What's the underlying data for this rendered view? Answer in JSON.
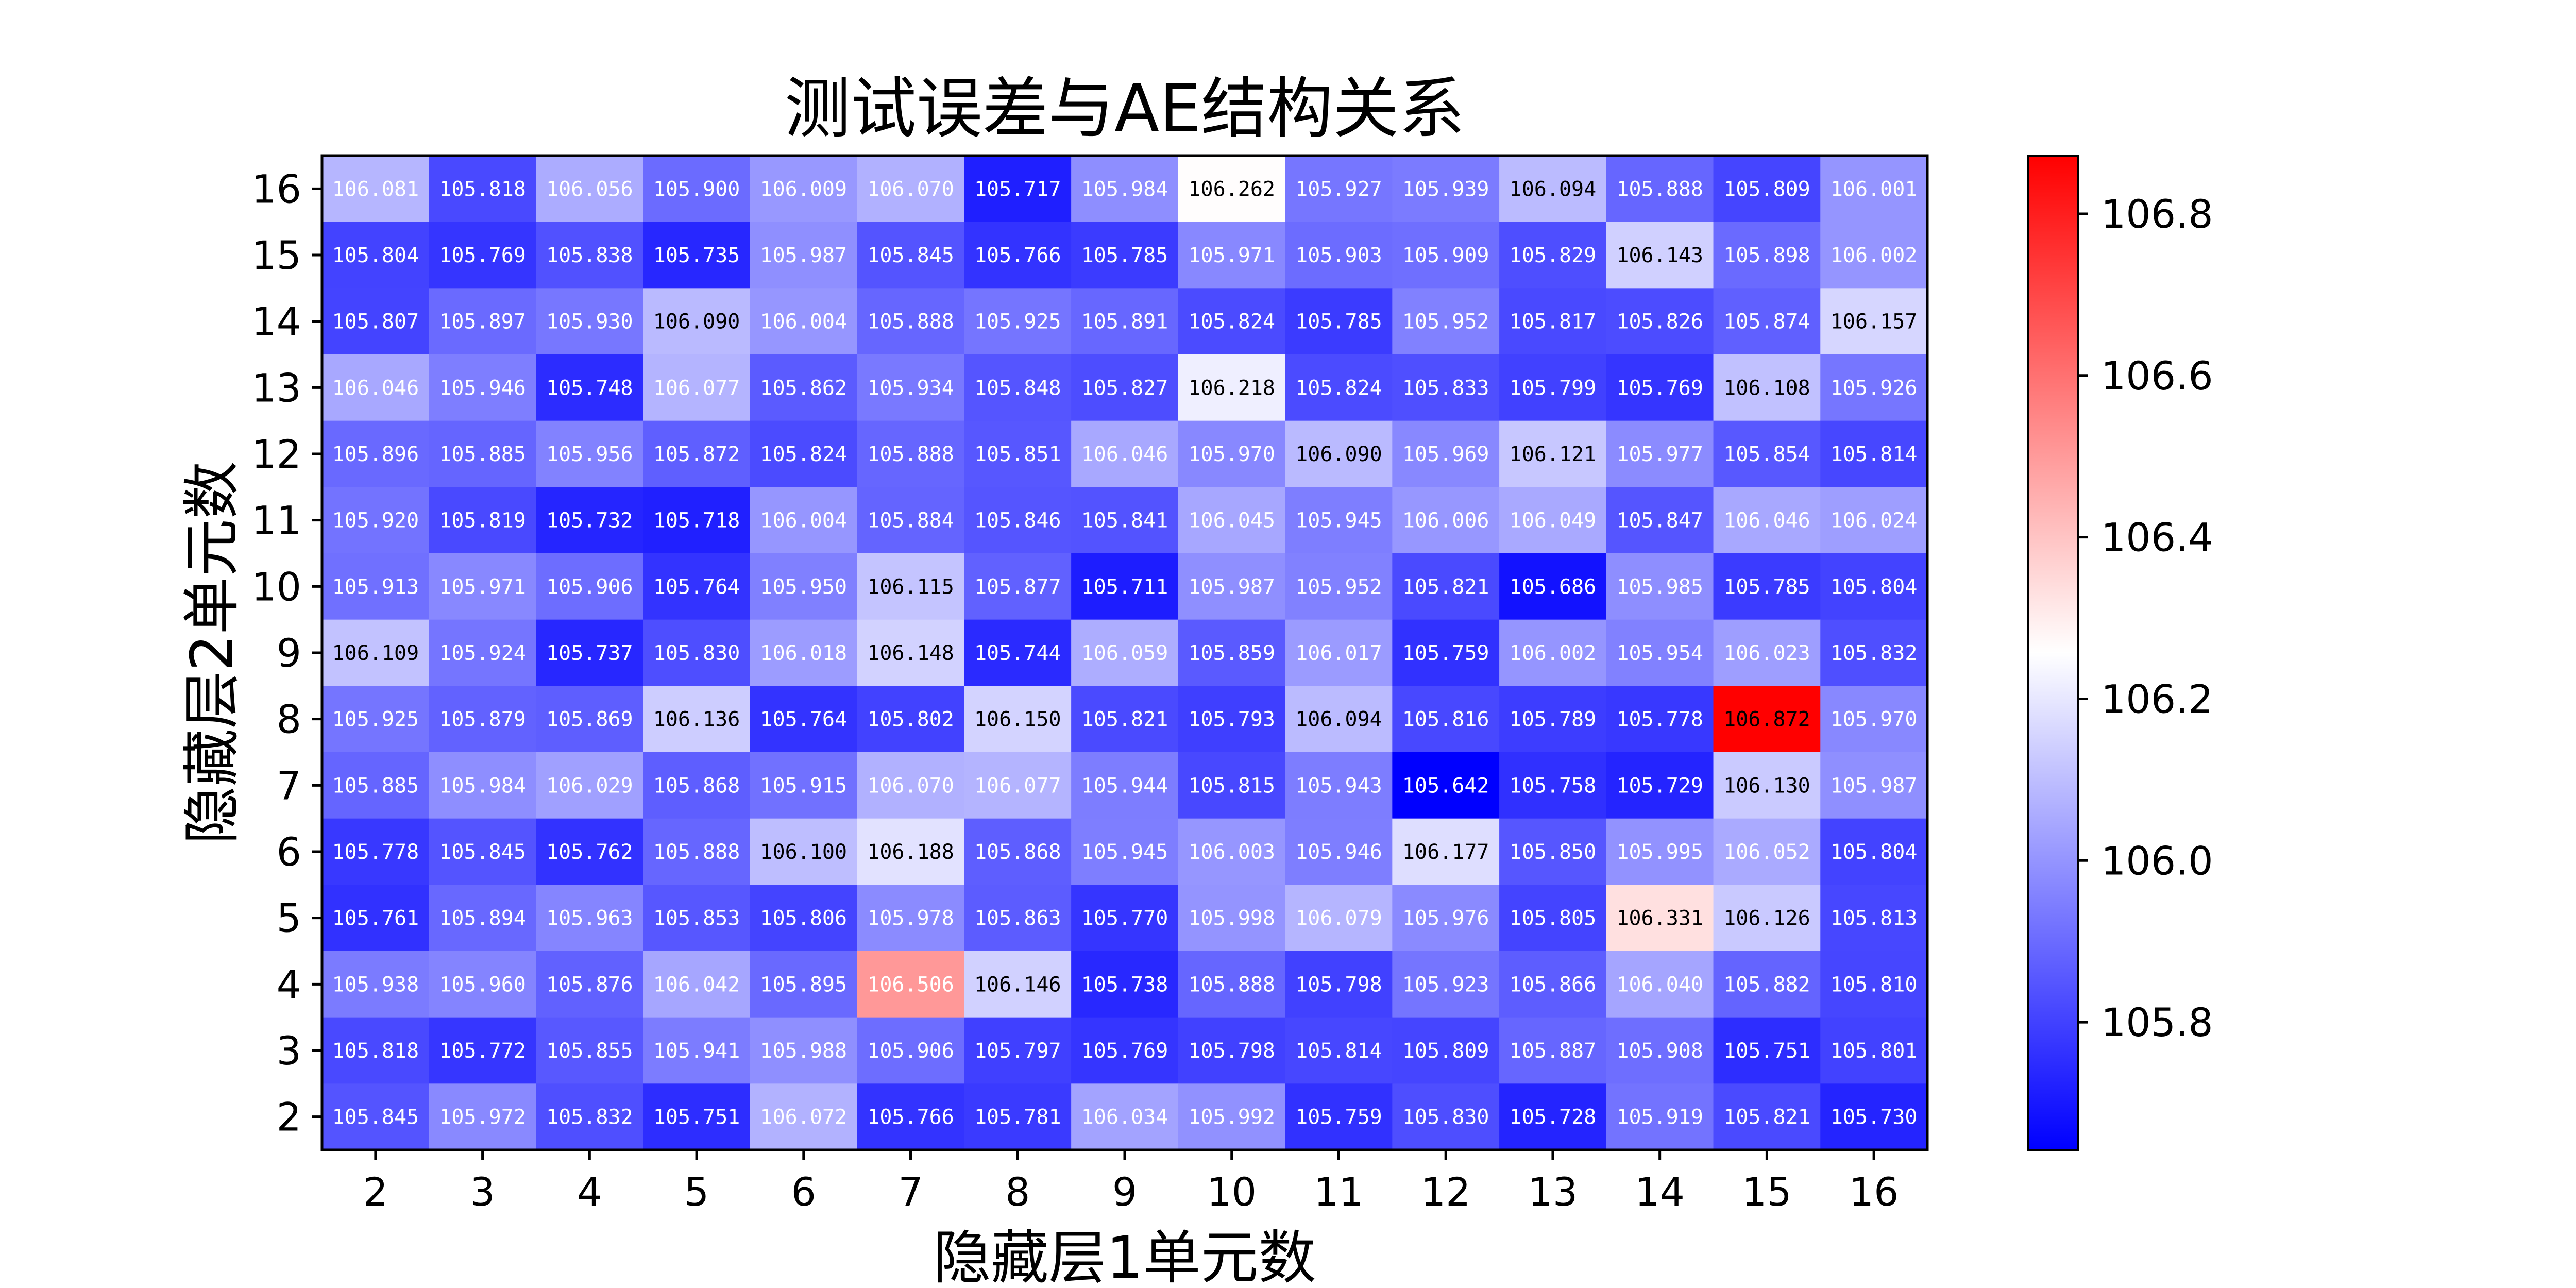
{
  "chart_data": {
    "type": "heatmap",
    "title": "测试误差与AE结构关系",
    "xlabel": "隐藏层1单元数",
    "ylabel": "隐藏层2单元数",
    "x_categories": [
      "2",
      "3",
      "4",
      "5",
      "6",
      "7",
      "8",
      "9",
      "10",
      "11",
      "12",
      "13",
      "14",
      "15",
      "16"
    ],
    "y_categories": [
      "16",
      "15",
      "14",
      "13",
      "12",
      "11",
      "10",
      "9",
      "8",
      "7",
      "6",
      "5",
      "4",
      "3",
      "2"
    ],
    "values": [
      [
        106.081,
        105.818,
        106.056,
        105.9,
        106.009,
        106.07,
        105.717,
        105.984,
        106.262,
        105.927,
        105.939,
        106.094,
        105.888,
        105.809,
        106.001
      ],
      [
        105.804,
        105.769,
        105.838,
        105.735,
        105.987,
        105.845,
        105.766,
        105.785,
        105.971,
        105.903,
        105.909,
        105.829,
        106.143,
        105.898,
        106.002
      ],
      [
        105.807,
        105.897,
        105.93,
        106.09,
        106.004,
        105.888,
        105.925,
        105.891,
        105.824,
        105.785,
        105.952,
        105.817,
        105.826,
        105.874,
        106.157
      ],
      [
        106.046,
        105.946,
        105.748,
        106.077,
        105.862,
        105.934,
        105.848,
        105.827,
        106.218,
        105.824,
        105.833,
        105.799,
        105.769,
        106.108,
        105.926
      ],
      [
        105.896,
        105.885,
        105.956,
        105.872,
        105.824,
        105.888,
        105.851,
        106.046,
        105.97,
        106.09,
        105.969,
        106.121,
        105.977,
        105.854,
        105.814
      ],
      [
        105.92,
        105.819,
        105.732,
        105.718,
        106.004,
        105.884,
        105.846,
        105.841,
        106.045,
        105.945,
        106.006,
        106.049,
        105.847,
        106.046,
        106.024
      ],
      [
        105.913,
        105.971,
        105.906,
        105.764,
        105.95,
        106.115,
        105.877,
        105.711,
        105.987,
        105.952,
        105.821,
        105.686,
        105.985,
        105.785,
        105.804
      ],
      [
        106.109,
        105.924,
        105.737,
        105.83,
        106.018,
        106.148,
        105.744,
        106.059,
        105.859,
        106.017,
        105.759,
        106.002,
        105.954,
        106.023,
        105.832
      ],
      [
        105.925,
        105.879,
        105.869,
        106.136,
        105.764,
        105.802,
        106.15,
        105.821,
        105.793,
        106.094,
        105.816,
        105.789,
        105.778,
        106.872,
        105.97
      ],
      [
        105.885,
        105.984,
        106.029,
        105.868,
        105.915,
        106.07,
        106.077,
        105.944,
        105.815,
        105.943,
        105.642,
        105.758,
        105.729,
        106.13,
        105.987
      ],
      [
        105.778,
        105.845,
        105.762,
        105.888,
        106.1,
        106.188,
        105.868,
        105.945,
        106.003,
        105.946,
        106.177,
        105.85,
        105.995,
        106.052,
        105.804
      ],
      [
        105.761,
        105.894,
        105.963,
        105.853,
        105.806,
        105.978,
        105.863,
        105.77,
        105.998,
        106.079,
        105.976,
        105.805,
        106.331,
        106.126,
        105.813
      ],
      [
        105.938,
        105.96,
        105.876,
        106.042,
        105.895,
        106.506,
        106.146,
        105.738,
        105.888,
        105.798,
        105.923,
        105.866,
        106.04,
        105.882,
        105.81
      ],
      [
        105.818,
        105.772,
        105.855,
        105.941,
        105.988,
        105.906,
        105.797,
        105.769,
        105.798,
        105.814,
        105.809,
        105.887,
        105.908,
        105.751,
        105.801
      ],
      [
        105.845,
        105.972,
        105.832,
        105.751,
        106.072,
        105.766,
        105.781,
        106.034,
        105.992,
        105.759,
        105.83,
        105.728,
        105.919,
        105.821,
        105.73
      ]
    ],
    "colormap": "bwr",
    "color_range": [
      105.642,
      106.872
    ],
    "colors": {
      "low": "#0000ff",
      "mid": "#ffffff",
      "high": "#ff0000"
    },
    "colorbar_ticks": [
      "105.8",
      "106.0",
      "106.2",
      "106.4",
      "106.6",
      "106.8"
    ],
    "legend": "colorbar-right"
  }
}
